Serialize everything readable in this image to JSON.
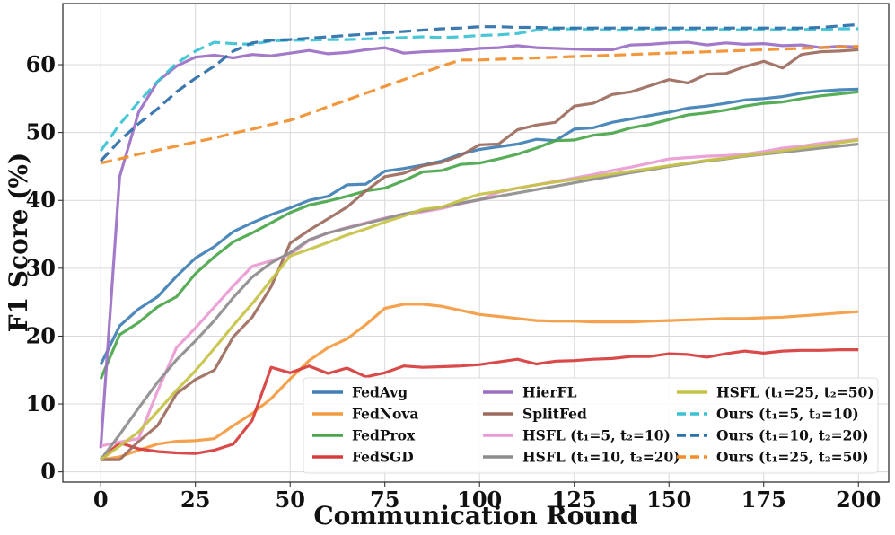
{
  "chart_data": {
    "type": "line",
    "title": "",
    "xlabel": "Communication Round",
    "ylabel": "F1 Score (%)",
    "xlim": [
      -10,
      208
    ],
    "ylim": [
      -1.5,
      69
    ],
    "xticks": [
      0,
      25,
      50,
      75,
      100,
      125,
      150,
      175,
      200
    ],
    "yticks": [
      0,
      10,
      20,
      30,
      40,
      50,
      60
    ],
    "grid": true,
    "legend_position": "lower-right",
    "x": [
      0,
      5,
      10,
      15,
      20,
      25,
      30,
      35,
      40,
      45,
      50,
      55,
      60,
      65,
      70,
      75,
      80,
      85,
      90,
      95,
      100,
      105,
      110,
      115,
      120,
      125,
      130,
      135,
      140,
      145,
      150,
      155,
      160,
      165,
      170,
      175,
      180,
      185,
      190,
      195,
      200
    ],
    "series": [
      {
        "name": "FedAvg",
        "color": "#3f7fb5",
        "dash": "solid",
        "values": [
          15.8,
          21.5,
          24.0,
          25.8,
          28.8,
          31.5,
          33.2,
          35.4,
          36.7,
          37.9,
          38.9,
          40.0,
          40.6,
          42.3,
          42.4,
          44.3,
          44.7,
          45.2,
          45.8,
          46.8,
          47.5,
          47.9,
          48.3,
          49.0,
          48.8,
          50.5,
          50.7,
          51.5,
          52.0,
          52.5,
          53.0,
          53.6,
          53.9,
          54.3,
          54.8,
          55.0,
          55.3,
          55.8,
          56.1,
          56.3,
          56.4
        ]
      },
      {
        "name": "FedNova",
        "color": "#f39a3e",
        "dash": "solid",
        "values": [
          1.8,
          2.2,
          3.2,
          4.1,
          4.5,
          4.6,
          4.9,
          6.8,
          8.6,
          10.8,
          13.7,
          16.4,
          18.3,
          19.6,
          21.7,
          24.1,
          24.7,
          24.7,
          24.4,
          23.8,
          23.2,
          22.9,
          22.6,
          22.3,
          22.2,
          22.2,
          22.1,
          22.1,
          22.1,
          22.2,
          22.3,
          22.4,
          22.5,
          22.6,
          22.6,
          22.7,
          22.8,
          23.0,
          23.2,
          23.4,
          23.6
        ]
      },
      {
        "name": "FedProx",
        "color": "#4aa64a",
        "dash": "solid",
        "values": [
          13.7,
          20.2,
          22.0,
          24.3,
          25.8,
          29.2,
          31.7,
          33.9,
          35.2,
          36.7,
          38.2,
          39.3,
          39.9,
          40.6,
          41.4,
          41.8,
          42.9,
          44.2,
          44.4,
          45.3,
          45.5,
          46.1,
          46.8,
          47.7,
          48.8,
          48.9,
          49.6,
          49.9,
          50.7,
          51.2,
          51.9,
          52.6,
          52.9,
          53.3,
          53.9,
          54.3,
          54.5,
          55.0,
          55.4,
          55.7,
          56.0
        ]
      },
      {
        "name": "FedSGD",
        "color": "#d63c3c",
        "dash": "solid",
        "values": [
          1.8,
          4.3,
          3.4,
          3.0,
          2.8,
          2.7,
          3.2,
          4.1,
          7.6,
          15.4,
          14.6,
          15.6,
          14.5,
          15.3,
          14.0,
          14.6,
          15.6,
          15.4,
          15.5,
          15.6,
          15.8,
          16.2,
          16.6,
          15.9,
          16.3,
          16.4,
          16.6,
          16.7,
          17.0,
          17.0,
          17.4,
          17.3,
          16.9,
          17.4,
          17.8,
          17.5,
          17.8,
          17.9,
          17.9,
          18.0,
          18.0
        ]
      },
      {
        "name": "HierFL",
        "color": "#9b6fc4",
        "dash": "solid",
        "values": [
          3.5,
          43.5,
          53.0,
          57.5,
          59.8,
          61.1,
          61.4,
          61.0,
          61.5,
          61.3,
          61.7,
          62.1,
          61.6,
          61.8,
          62.2,
          62.5,
          61.7,
          61.9,
          62.0,
          62.1,
          62.4,
          62.5,
          62.8,
          62.5,
          62.4,
          62.3,
          62.2,
          62.2,
          62.9,
          63.0,
          63.2,
          63.3,
          62.9,
          63.2,
          63.0,
          63.1,
          62.8,
          62.9,
          62.5,
          62.7,
          62.6
        ]
      },
      {
        "name": "SplitFed",
        "color": "#9c6b5d",
        "dash": "solid",
        "values": [
          1.8,
          1.8,
          4.5,
          6.8,
          11.5,
          13.6,
          15.0,
          19.9,
          22.8,
          27.3,
          33.7,
          35.6,
          37.3,
          39.0,
          41.4,
          43.5,
          44.0,
          45.1,
          45.6,
          46.6,
          48.2,
          48.3,
          50.4,
          51.1,
          51.5,
          53.9,
          54.3,
          55.6,
          56.0,
          56.9,
          57.8,
          57.3,
          58.6,
          58.7,
          59.7,
          60.5,
          59.5,
          61.5,
          61.9,
          62.0,
          62.2
        ]
      },
      {
        "name": "HSFL (t1=5, t2=10)",
        "color": "#e99ad3",
        "dash": "solid",
        "values": [
          3.8,
          4.4,
          4.9,
          11.9,
          18.3,
          21.2,
          24.3,
          27.4,
          30.3,
          31.1,
          32.0,
          34.1,
          35.2,
          36.0,
          36.7,
          37.4,
          38.0,
          38.3,
          38.8,
          39.5,
          40.1,
          41.2,
          41.8,
          42.3,
          42.8,
          43.3,
          43.8,
          44.4,
          44.9,
          45.5,
          46.1,
          46.3,
          46.5,
          46.6,
          46.8,
          47.2,
          47.7,
          48.0,
          48.4,
          48.7,
          49.0
        ]
      },
      {
        "name": "HSFL (t1=10, t2=20)",
        "color": "#8d8d8d",
        "dash": "solid",
        "values": [
          1.8,
          5.5,
          9.4,
          13.2,
          16.5,
          19.3,
          22.3,
          25.7,
          28.7,
          30.8,
          32.3,
          34.2,
          35.2,
          35.9,
          36.6,
          37.3,
          38.0,
          38.5,
          39.0,
          39.6,
          40.1,
          40.6,
          41.1,
          41.6,
          42.1,
          42.6,
          43.1,
          43.6,
          44.1,
          44.5,
          45.0,
          45.4,
          45.8,
          46.1,
          46.5,
          46.8,
          47.1,
          47.4,
          47.7,
          48.0,
          48.3
        ]
      },
      {
        "name": "HSFL (t1=25, t2=50)",
        "color": "#c5c247",
        "dash": "solid",
        "values": [
          1.8,
          3.8,
          5.9,
          8.9,
          12.0,
          14.9,
          18.2,
          21.6,
          24.8,
          28.3,
          31.8,
          32.8,
          33.8,
          34.9,
          35.8,
          36.8,
          37.7,
          38.7,
          39.0,
          40.0,
          40.9,
          41.3,
          41.8,
          42.3,
          42.7,
          43.1,
          43.5,
          43.9,
          44.3,
          44.7,
          45.1,
          45.5,
          45.9,
          46.2,
          46.6,
          46.9,
          47.3,
          47.7,
          48.1,
          48.5,
          48.9
        ]
      },
      {
        "name": "Ours (t1=5, t2=10)",
        "color": "#39c2d4",
        "dash": "dashed",
        "values": [
          47.3,
          51.2,
          54.5,
          57.5,
          60.2,
          62.0,
          63.3,
          63.1,
          63.0,
          63.5,
          63.6,
          63.6,
          63.7,
          63.7,
          63.8,
          63.9,
          64.0,
          64.1,
          64.0,
          64.1,
          64.3,
          64.4,
          64.6,
          65.1,
          65.2,
          65.3,
          65.2,
          65.1,
          65.1,
          65.2,
          65.1,
          65.1,
          65.1,
          65.2,
          65.1,
          65.2,
          65.1,
          65.2,
          65.2,
          65.3,
          65.3
        ]
      },
      {
        "name": "Ours (t1=10, t2=20)",
        "color": "#2b6ea8",
        "dash": "dashed",
        "values": [
          45.8,
          48.8,
          51.3,
          53.5,
          56.0,
          58.0,
          59.8,
          62.0,
          63.2,
          63.6,
          63.7,
          63.9,
          64.1,
          64.3,
          64.5,
          64.7,
          64.9,
          65.1,
          65.3,
          65.4,
          65.6,
          65.6,
          65.5,
          65.5,
          65.4,
          65.4,
          65.4,
          65.4,
          65.4,
          65.4,
          65.4,
          65.4,
          65.4,
          65.4,
          65.4,
          65.4,
          65.4,
          65.4,
          65.5,
          65.7,
          65.9
        ]
      },
      {
        "name": "Ours (t1=25, t2=50)",
        "color": "#f28e2b",
        "dash": "dashed",
        "values": [
          45.5,
          46.1,
          46.8,
          47.4,
          48.0,
          48.6,
          49.2,
          49.9,
          50.5,
          51.2,
          51.8,
          52.8,
          53.8,
          54.8,
          55.8,
          56.8,
          57.8,
          58.8,
          59.8,
          60.7,
          60.7,
          60.8,
          60.9,
          61.0,
          61.1,
          61.2,
          61.3,
          61.4,
          61.5,
          61.6,
          61.7,
          61.8,
          61.9,
          62.0,
          62.1,
          62.2,
          62.3,
          62.4,
          62.5,
          62.6,
          62.7
        ]
      }
    ],
    "legend": [
      [
        "FedAvg",
        "FedNova",
        "FedProx",
        "FedSGD"
      ],
      [
        "HierFL",
        "SplitFed",
        "HSFL (t₁=5, t₂=10)",
        "HSFL (t₁=10, t₂=20)"
      ],
      [
        "HSFL (t₁=25, t₂=50)",
        "Ours (t₁=5, t₂=10)",
        "Ours (t₁=10, t₂=20)",
        "Ours (t₁=25, t₂=50)"
      ]
    ]
  }
}
